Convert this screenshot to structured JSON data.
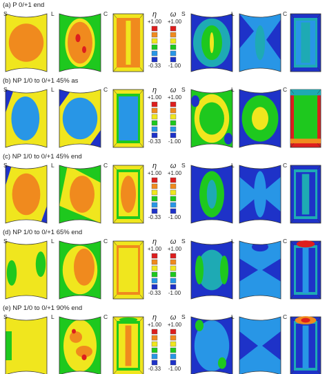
{
  "rows": [
    {
      "title": "(a) P 0/+1 end"
    },
    {
      "title": "(b) NP 1/0 to 0/+1 45% as"
    },
    {
      "title": "(c) NP 1/0 to 0/+1 45% end"
    },
    {
      "title": "(d) NP 1/0 to 0/+1 65% end"
    },
    {
      "title": "(e) NP 1/0 to 0/+1 90% end"
    }
  ],
  "view_labels": [
    "S",
    "L",
    "C"
  ],
  "legend": {
    "eta": {
      "symbol": "η",
      "max": "+1.00",
      "min": "-0.33"
    },
    "omega": {
      "symbol": "ω",
      "max": "+1.00",
      "min": "-1.00"
    },
    "colors": [
      "#dd1e1e",
      "#f08a1e",
      "#f0e61e",
      "#1ec81e",
      "#2896e6",
      "#1e32c8"
    ]
  }
}
